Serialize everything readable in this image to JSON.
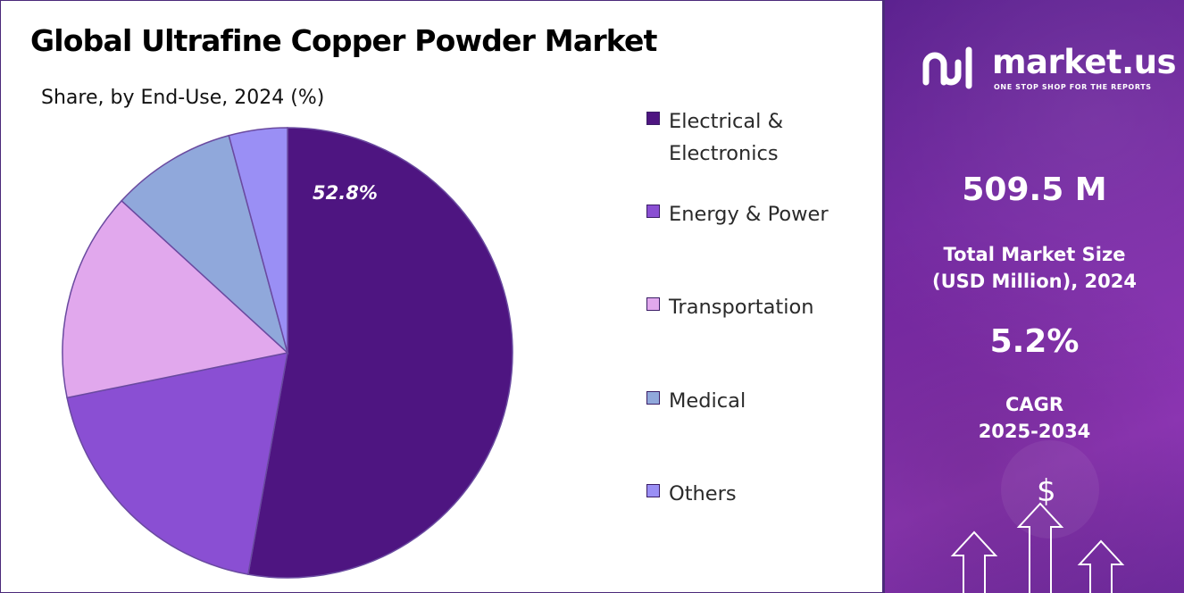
{
  "title": "Global Ultrafine Copper Powder Market",
  "subtitle": "Share, by End-Use, 2024 (%)",
  "chart_data": {
    "type": "pie",
    "title": "Global Ultrafine Copper Powder Market",
    "subtitle": "Share, by End-Use, 2024 (%)",
    "legend_position": "right",
    "slices": [
      {
        "label": "Electrical & Electronics",
        "value": 52.8,
        "color": "#4e1581",
        "data_label": "52.8%"
      },
      {
        "label": "Energy & Power",
        "value": 19.0,
        "color": "#8a4fd3",
        "data_label": ""
      },
      {
        "label": "Transportation",
        "value": 15.0,
        "color": "#e1a8ed",
        "data_label": ""
      },
      {
        "label": "Medical",
        "value": 9.0,
        "color": "#90a8db",
        "data_label": ""
      },
      {
        "label": "Others",
        "value": 4.2,
        "color": "#9a8ff5",
        "data_label": ""
      }
    ]
  },
  "legend": [
    {
      "line1": "Electrical &",
      "line2": "Electronics"
    },
    {
      "line1": "Energy & Power",
      "line2": ""
    },
    {
      "line1": "Transportation",
      "line2": ""
    },
    {
      "line1": "Medical",
      "line2": ""
    },
    {
      "line1": "Others",
      "line2": ""
    }
  ],
  "panel": {
    "brand": "market.us",
    "tagline": "ONE STOP SHOP FOR THE REPORTS",
    "market_size": "509.5 M",
    "market_size_label_1": "Total Market Size",
    "market_size_label_2": "(USD Million), 2024",
    "cagr": "5.2%",
    "cagr_label_1": "CAGR",
    "cagr_label_2": "2025-2034",
    "currency_symbol": "$"
  },
  "colors": {
    "panel_bg": "#7a2aa6",
    "border": "#4b2a7a",
    "slice_stroke": "#6a4aa0"
  },
  "icons": [
    "market-us-logo-icon",
    "dollar-icon",
    "up-arrow-icon"
  ]
}
